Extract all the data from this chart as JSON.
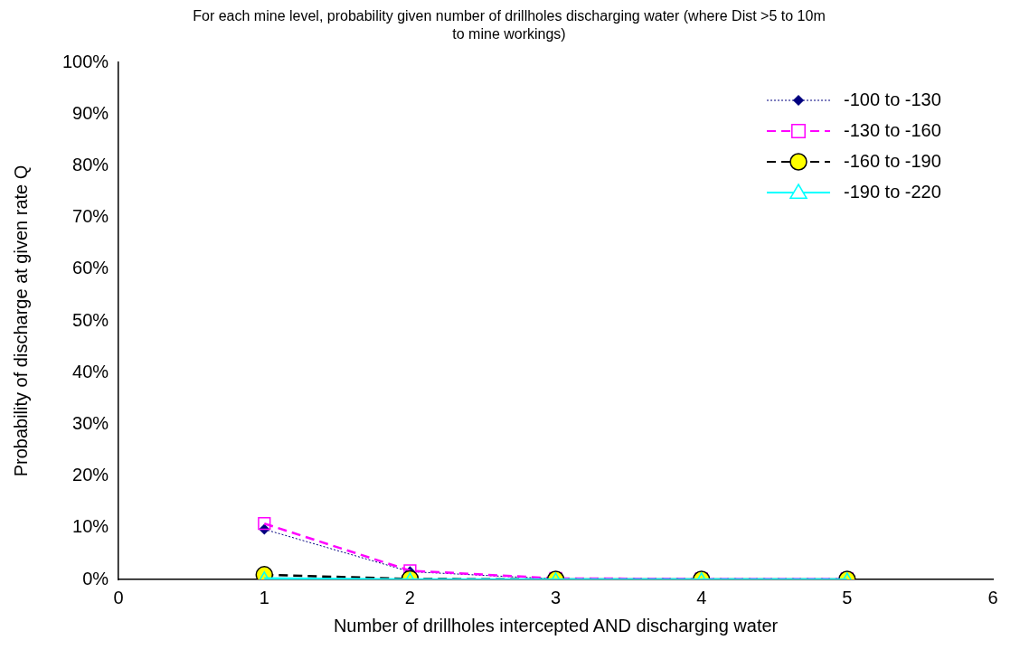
{
  "chart_data": {
    "type": "line",
    "title": "For each mine level, probability given number of drillholes discharging water (where Dist >5 to 10m to mine workings)",
    "xlabel": "Number of drillholes intercepted AND discharging water",
    "ylabel": "Probability of discharge at given rate Q",
    "x": [
      1,
      2,
      3,
      4,
      5
    ],
    "series": [
      {
        "name": "-100 to -130",
        "color": "#000080",
        "values": [
          9.7,
          1.5,
          0.1,
          0,
          0
        ],
        "marker": "diamond",
        "line_style": "dotted"
      },
      {
        "name": "-130 to -160",
        "color": "#ff00ff",
        "values": [
          10.8,
          1.7,
          0.2,
          0.1,
          0.1
        ],
        "marker": "square",
        "line_style": "dashed"
      },
      {
        "name": "-160 to -190",
        "color": "#000000",
        "values": [
          0.9,
          0.1,
          0,
          0,
          0
        ],
        "marker": "circle",
        "line_style": "dashed"
      },
      {
        "name": "-190 to -220",
        "color": "#00ffff",
        "values": [
          0.2,
          0,
          0,
          0,
          0
        ],
        "marker": "triangle",
        "line_style": "solid"
      }
    ],
    "xlim": [
      0,
      6
    ],
    "xticks": [
      0,
      1,
      2,
      3,
      4,
      5,
      6
    ],
    "ylim": [
      0,
      100
    ],
    "yticks": [
      {
        "value": 0,
        "label": "0%"
      },
      {
        "value": 10,
        "label": "10%"
      },
      {
        "value": 20,
        "label": "20%"
      },
      {
        "value": 30,
        "label": "30%"
      },
      {
        "value": 40,
        "label": "40%"
      },
      {
        "value": 50,
        "label": "50%"
      },
      {
        "value": 60,
        "label": "60%"
      },
      {
        "value": 70,
        "label": "70%"
      },
      {
        "value": 80,
        "label": "80%"
      },
      {
        "value": 90,
        "label": "90%"
      },
      {
        "value": 100,
        "label": "100%"
      }
    ],
    "grid": false,
    "legend": "top right"
  }
}
